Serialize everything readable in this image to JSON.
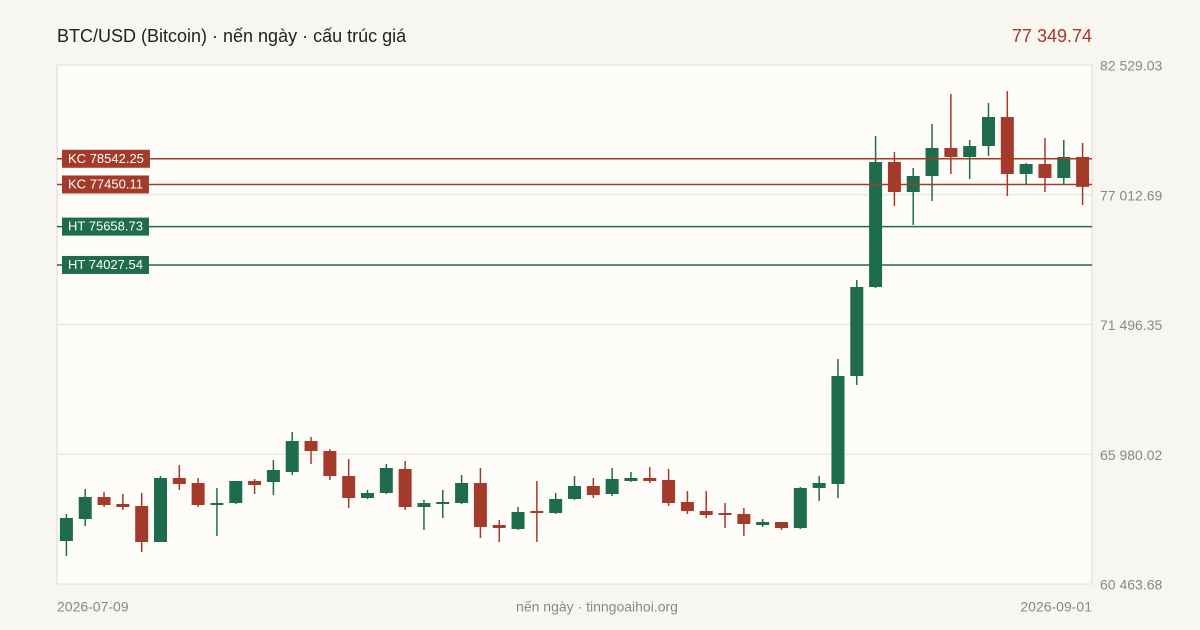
{
  "chart_data": {
    "type": "candlestick",
    "title": "BTC/USD (Bitcoin) · nến ngày · cấu trúc giá",
    "last_price": {
      "value": 77349.74,
      "label": "77 349.74"
    },
    "footer": "nến ngày · tinngoaihoi.org",
    "up_color": "#1e6b4e",
    "down_color": "#a33a2a",
    "grid": true,
    "categories": [
      "2026-07-09",
      null,
      null,
      null,
      null,
      null,
      null,
      null,
      null,
      null,
      null,
      null,
      null,
      null,
      null,
      null,
      null,
      null,
      null,
      null,
      null,
      null,
      null,
      null,
      null,
      null,
      null,
      null,
      null,
      null,
      null,
      null,
      null,
      null,
      null,
      null,
      null,
      null,
      null,
      null,
      null,
      null,
      null,
      null,
      null,
      null,
      null,
      null,
      null,
      null,
      null,
      null,
      null,
      null,
      "2026-09-01"
    ],
    "open": [
      62292,
      63227,
      64163,
      63865,
      63780,
      62249,
      64970,
      64758,
      63822,
      63907,
      64843,
      64800,
      65225,
      66543,
      66118,
      65055,
      64120,
      64333,
      65353,
      63737,
      63865,
      63907,
      64758,
      62972,
      62802,
      63567,
      63482,
      64078,
      64630,
      64290,
      64843,
      64970,
      64885,
      63950,
      63567,
      63482,
      63440,
      62972,
      63100,
      62845,
      64545,
      64715,
      69307,
      73091,
      78405,
      77130,
      77810,
      79000,
      78618,
      79085,
      80318,
      77895,
      78320,
      77725,
      78618
    ],
    "high": [
      63440,
      64503,
      64375,
      64290,
      64333,
      65055,
      65523,
      64970,
      64545,
      64843,
      64928,
      65736,
      66926,
      66713,
      66203,
      65778,
      64460,
      65566,
      65693,
      64035,
      64460,
      65098,
      65396,
      63185,
      63737,
      64843,
      64333,
      65055,
      64970,
      65396,
      65225,
      65438,
      65353,
      64418,
      64418,
      63907,
      63695,
      63227,
      63100,
      64588,
      65055,
      70030,
      73388,
      79511,
      78830,
      78150,
      80021,
      81296,
      79340,
      80914,
      81424,
      78363,
      79425,
      79340,
      79213
    ],
    "low": [
      61654,
      62930,
      63737,
      63610,
      61824,
      62249,
      64460,
      63737,
      62504,
      63865,
      64290,
      64248,
      65098,
      65566,
      64885,
      63695,
      64078,
      64290,
      63610,
      62760,
      63270,
      63865,
      62419,
      62249,
      62760,
      62249,
      63440,
      64035,
      64120,
      64205,
      64800,
      64758,
      63780,
      63440,
      63270,
      62845,
      62504,
      62887,
      62760,
      62802,
      63992,
      64120,
      68924,
      73048,
      76534,
      75727,
      76747,
      77895,
      77682,
      78660,
      76960,
      77427,
      77130,
      77427,
      76577
    ],
    "close": [
      63270,
      64163,
      63822,
      63737,
      62249,
      64970,
      64715,
      63822,
      63907,
      64843,
      64673,
      65310,
      66543,
      66118,
      65055,
      64120,
      64333,
      65396,
      63737,
      63907,
      63950,
      64758,
      62887,
      62845,
      63525,
      63482,
      64078,
      64630,
      64248,
      64928,
      64970,
      64843,
      63907,
      63567,
      63397,
      63397,
      63015,
      63100,
      62845,
      64545,
      64758,
      69307,
      73091,
      78405,
      77130,
      77810,
      79000,
      78618,
      79085,
      80318,
      77895,
      78320,
      77725,
      78618,
      77349.74
    ],
    "ylim": [
      60463.68,
      82529.03
    ],
    "yticks": [
      {
        "value": 60463.68,
        "label": "60 463.68"
      },
      {
        "value": 65980.02,
        "label": "65 980.02"
      },
      {
        "value": 71496.35,
        "label": "71 496.35"
      },
      {
        "value": 77012.69,
        "label": "77 012.69"
      },
      {
        "value": 82529.03,
        "label": "82 529.03"
      }
    ],
    "levels": [
      {
        "kind": "KC",
        "value": 78542.25,
        "color": "#a33a2a"
      },
      {
        "kind": "KC",
        "value": 77450.11,
        "color": "#a33a2a"
      },
      {
        "kind": "HT",
        "value": 75658.73,
        "color": "#1e6b4e"
      },
      {
        "kind": "HT",
        "value": 74027.54,
        "color": "#1e6b4e"
      }
    ]
  }
}
